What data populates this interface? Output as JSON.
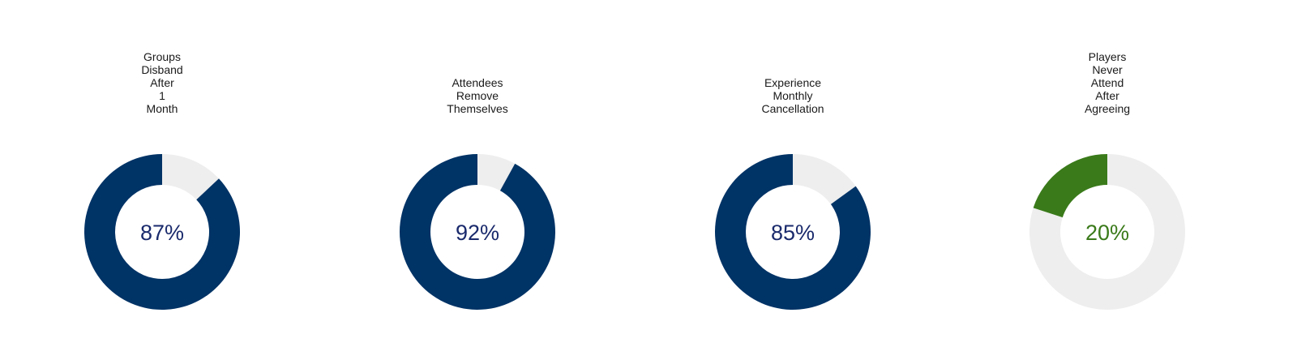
{
  "chart_data": [
    {
      "type": "pie",
      "title": [
        "Groups",
        "Disband",
        "After",
        "1",
        "Month"
      ],
      "value": 87,
      "value_label": "87%",
      "color": "#003366",
      "remainder_color": "#eeeeee",
      "label_color": "#1a2a6c"
    },
    {
      "type": "pie",
      "title": [
        "Attendees",
        "Remove",
        "Themselves"
      ],
      "value": 92,
      "value_label": "92%",
      "color": "#003366",
      "remainder_color": "#eeeeee",
      "label_color": "#1a2a6c"
    },
    {
      "type": "pie",
      "title": [
        "Experience",
        "Monthly",
        "Cancellation"
      ],
      "value": 85,
      "value_label": "85%",
      "color": "#003366",
      "remainder_color": "#eeeeee",
      "label_color": "#1a2a6c"
    },
    {
      "type": "pie",
      "title": [
        "Players",
        "Never",
        "Attend",
        "After",
        "Agreeing"
      ],
      "value": 20,
      "value_label": "20%",
      "color": "#3a7a1a",
      "remainder_color": "#eeeeee",
      "label_color": "#3a7a1a"
    }
  ]
}
